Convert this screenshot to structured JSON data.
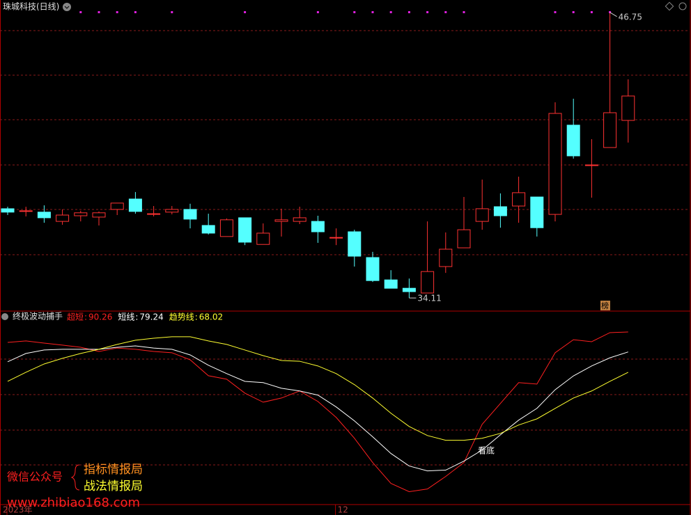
{
  "chart_data": [
    {
      "type": "candlestick",
      "title": "珠城科技(日线)",
      "categories": [
        "2023年",
        null,
        null,
        null,
        null,
        null,
        null,
        null,
        null,
        null,
        null,
        null,
        null,
        null,
        null,
        null,
        null,
        null,
        "12",
        null,
        null,
        null,
        null,
        null,
        null,
        null,
        null,
        null,
        null,
        null,
        null,
        null,
        null,
        null,
        null
      ],
      "open": [
        38.06,
        37.97,
        37.91,
        37.5,
        37.75,
        37.69,
        38.03,
        38.49,
        37.81,
        37.91,
        38.03,
        37.32,
        36.83,
        37.66,
        36.48,
        37.5,
        37.5,
        37.5,
        36.79,
        37.04,
        35.9,
        34.91,
        34.54,
        34.33,
        35.5,
        36.33,
        37.5,
        38.15,
        38.18,
        38.58,
        37.81,
        41.76,
        40.0,
        40.77,
        41.97
      ],
      "high": [
        38.15,
        38.15,
        38.21,
        38.03,
        37.97,
        37.94,
        38.31,
        38.8,
        38.18,
        38.18,
        38.28,
        37.84,
        37.63,
        37.66,
        37.41,
        38.06,
        38.15,
        37.75,
        37.19,
        37.13,
        36.15,
        35.34,
        34.97,
        37.5,
        37.01,
        38.58,
        39.35,
        38.74,
        39.48,
        38.58,
        42.77,
        42.93,
        41.14,
        46.75,
        43.79
      ],
      "low": [
        37.78,
        37.72,
        37.44,
        37.35,
        37.5,
        37.32,
        37.78,
        37.84,
        37.72,
        37.81,
        37.19,
        36.92,
        36.83,
        36.45,
        36.48,
        36.83,
        37.38,
        36.55,
        36.45,
        35.5,
        34.82,
        34.54,
        34.11,
        34.33,
        35.22,
        36.33,
        37.13,
        37.22,
        37.44,
        36.83,
        37.5,
        40.28,
        38.55,
        40.77,
        40.99
      ],
      "close": [
        37.91,
        37.97,
        37.66,
        37.78,
        37.88,
        37.88,
        38.31,
        37.94,
        37.84,
        38.03,
        37.6,
        36.98,
        37.57,
        36.58,
        36.98,
        37.57,
        37.66,
        37.04,
        36.79,
        35.96,
        34.88,
        34.54,
        34.39,
        35.28,
        36.27,
        37.13,
        38.06,
        37.75,
        38.77,
        37.22,
        42.28,
        40.4,
        40.0,
        42.31,
        43.05
      ],
      "up_color": "#ff3232",
      "down_color": "#54ffff",
      "ylim": [
        33.56,
        47.3
      ],
      "badge": "榜"
    },
    {
      "type": "line",
      "title": "终极波动捕手",
      "series": [
        {
          "name": "超短",
          "color": "#ff2020",
          "values": [
            84.5,
            85.3,
            84.1,
            83.0,
            81.8,
            79.5,
            81.4,
            80.7,
            79.5,
            78.8,
            74.9,
            66.1,
            64.2,
            56.5,
            51.5,
            53.8,
            57.7,
            51.9,
            43.1,
            31.6,
            18.2,
            6.7,
            2.1,
            3.6,
            10.5,
            18.2,
            39.3,
            50.8,
            62.3,
            61.5,
            78.8,
            86.0,
            84.9,
            89.9,
            90.26
          ]
        },
        {
          "name": "短线",
          "color": "#ffffff",
          "values": [
            73.8,
            78.4,
            80.3,
            80.7,
            80.7,
            80.7,
            81.8,
            82.6,
            81.4,
            80.7,
            77.6,
            71.9,
            67.3,
            63.0,
            62.3,
            59.2,
            57.7,
            55.4,
            48.9,
            41.2,
            32.4,
            23.2,
            16.3,
            13.6,
            14.0,
            19.0,
            25.1,
            33.5,
            41.6,
            48.1,
            58.4,
            66.0,
            71.5,
            76.0,
            79.24
          ]
        },
        {
          "name": "趋势线",
          "color": "#ffff30",
          "values": [
            63.0,
            68.0,
            72.6,
            75.7,
            78.4,
            80.7,
            83.4,
            85.7,
            86.8,
            87.6,
            87.6,
            85.3,
            83.4,
            80.3,
            77.2,
            74.5,
            74.1,
            71.5,
            67.3,
            61.2,
            53.8,
            45.4,
            38.1,
            33.1,
            30.5,
            30.5,
            31.6,
            34.3,
            38.9,
            42.3,
            48.1,
            53.8,
            57.7,
            63.0,
            68.02
          ]
        }
      ],
      "ylim": [
        -5,
        101.4
      ],
      "annotation": "看底",
      "watermark": {
        "lead": "微信公众号",
        "line1": "指标情报局",
        "line2": "战法情报局",
        "url": "www.zhibiao168.com"
      }
    }
  ]
}
